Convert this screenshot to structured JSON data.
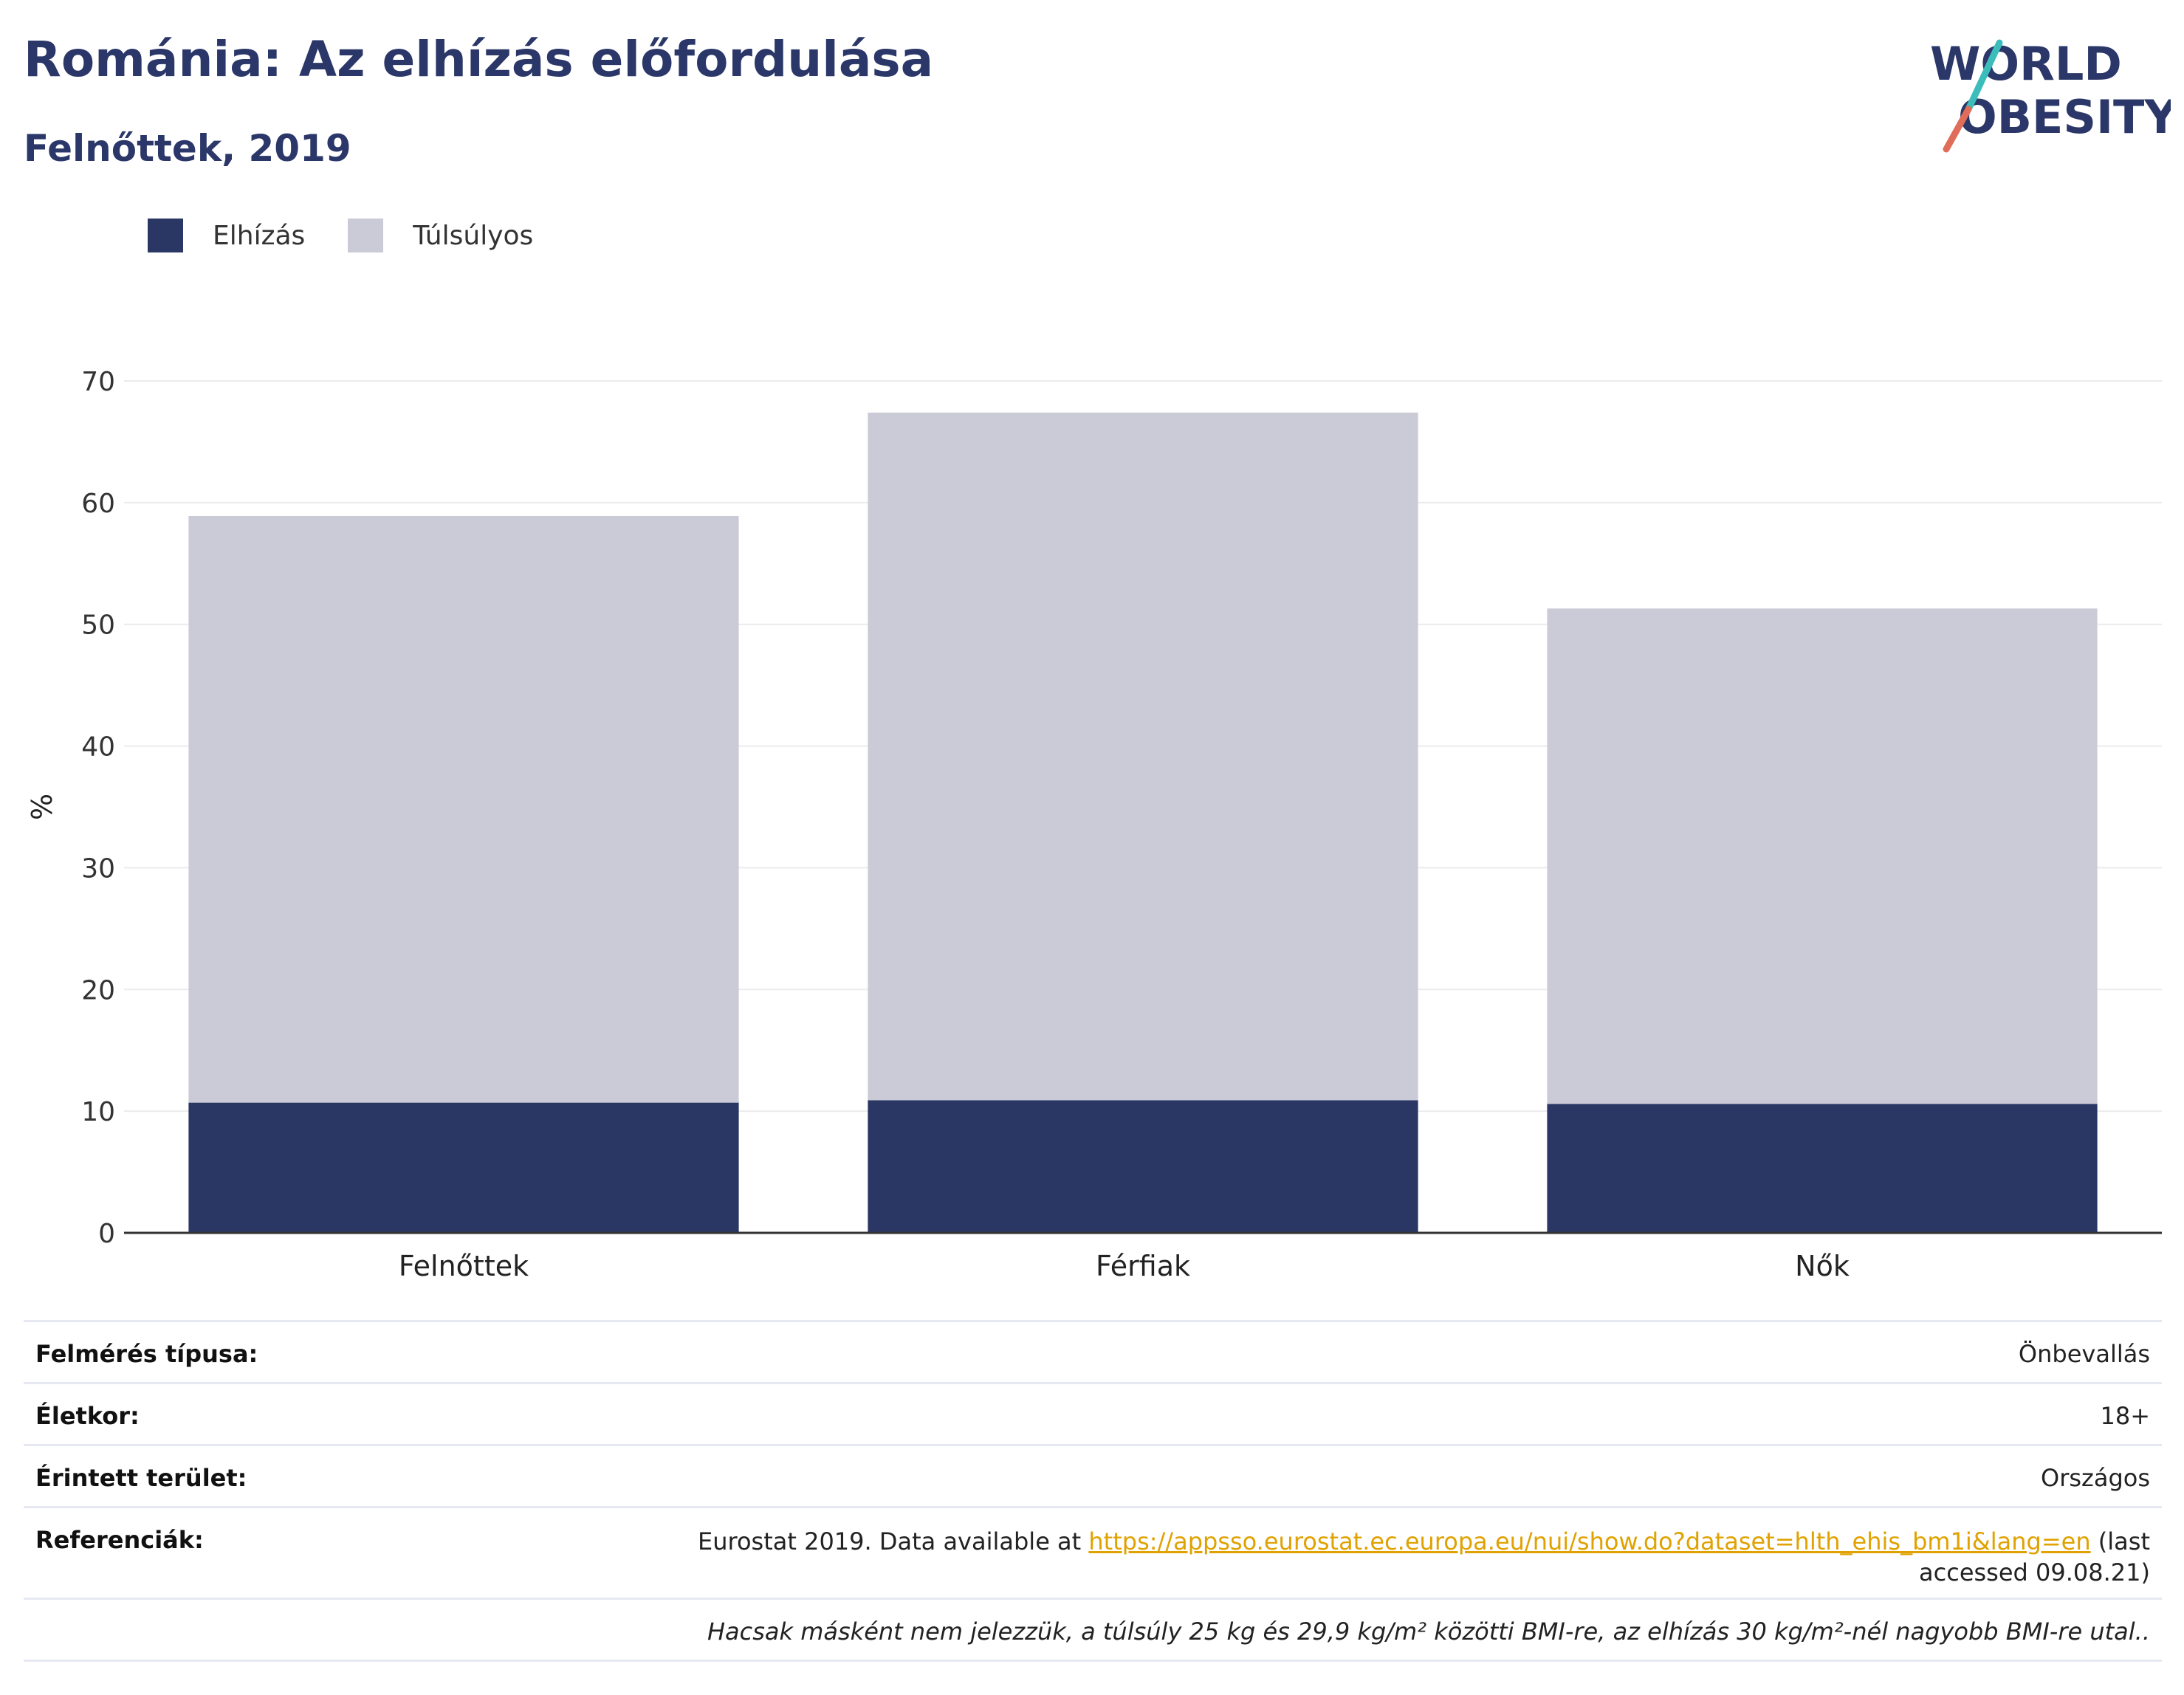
{
  "header": {
    "title": "Románia: Az elhízás előfordulása",
    "subtitle": "Felnőttek, 2019"
  },
  "logo": {
    "line1": "WORLD",
    "line2": "OBESITY"
  },
  "colors": {
    "obesity": "#2a3765",
    "overweight": "#cacbd7",
    "title": "#2a3768",
    "link": "#e0a200",
    "logo_teal": "#3cbdbb",
    "logo_coral": "#e06c5a"
  },
  "chart_data": {
    "type": "bar",
    "stacked": true,
    "categories": [
      "Felnőttek",
      "Férfiak",
      "Nők"
    ],
    "series": [
      {
        "name": "Elhízás",
        "values": [
          10.7,
          10.9,
          10.6
        ]
      },
      {
        "name": "Túlsúlyos",
        "values": [
          48.2,
          56.5,
          40.7
        ]
      }
    ],
    "ylabel": "%",
    "ylim": [
      0,
      70
    ],
    "yticks": [
      0,
      10,
      20,
      30,
      40,
      50,
      60,
      70
    ],
    "grid": true,
    "legend": "top-left"
  },
  "meta": {
    "survey_label": "Felmérés típusa:",
    "survey_value": "Önbevallás",
    "age_label": "Életkor:",
    "age_value": "18+",
    "area_label": "Érintett terület:",
    "area_value": "Országos",
    "ref_label": "Referenciák:",
    "ref_prefix": "Eurostat 2019. Data available at ",
    "ref_link": "https://appsso.eurostat.ec.europa.eu/nui/show.do?dataset=hlth_ehis_bm1i&lang=en",
    "ref_suffix": " (last accessed 09.08.21)",
    "note": "Hacsak másként nem jelezzük, a túlsúly 25 kg és 29,9 kg/m² közötti BMI-re, az elhízás 30 kg/m²-nél nagyobb BMI-re utal.."
  }
}
